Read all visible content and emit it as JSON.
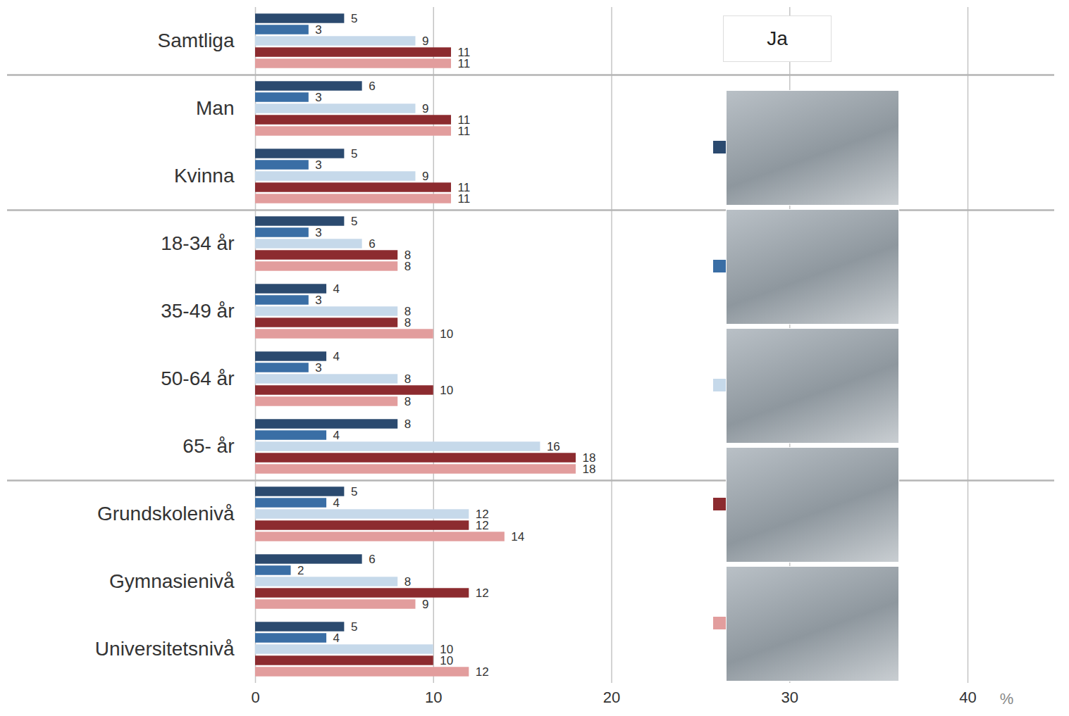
{
  "chart_data": {
    "type": "bar",
    "orientation": "horizontal",
    "categories": [
      "Samtliga",
      "Man",
      "Kvinna",
      "18-34 år",
      "35-49 år",
      "50-64 år",
      "65- år",
      "Grundskolenivå",
      "Gymnasienivå",
      "Universitetsnivå"
    ],
    "series": [
      {
        "color": "#2b4a6f",
        "values": [
          5,
          6,
          5,
          5,
          4,
          4,
          8,
          5,
          6,
          5
        ]
      },
      {
        "color": "#3a6ea5",
        "values": [
          3,
          3,
          3,
          3,
          3,
          3,
          4,
          4,
          2,
          4
        ]
      },
      {
        "color": "#c6d9ea",
        "values": [
          9,
          9,
          9,
          6,
          8,
          8,
          16,
          12,
          8,
          10
        ]
      },
      {
        "color": "#8c2b2f",
        "values": [
          11,
          11,
          11,
          8,
          8,
          10,
          18,
          12,
          12,
          10
        ]
      },
      {
        "color": "#e29d9d",
        "values": [
          11,
          11,
          11,
          8,
          10,
          8,
          18,
          14,
          9,
          12
        ]
      }
    ],
    "xlim": [
      0,
      40
    ],
    "xticks": [
      0,
      10,
      20,
      30,
      40
    ],
    "xlabel": "%",
    "annotations": [
      "Ja"
    ],
    "grid": true,
    "data_labels": true,
    "legend": "right"
  }
}
